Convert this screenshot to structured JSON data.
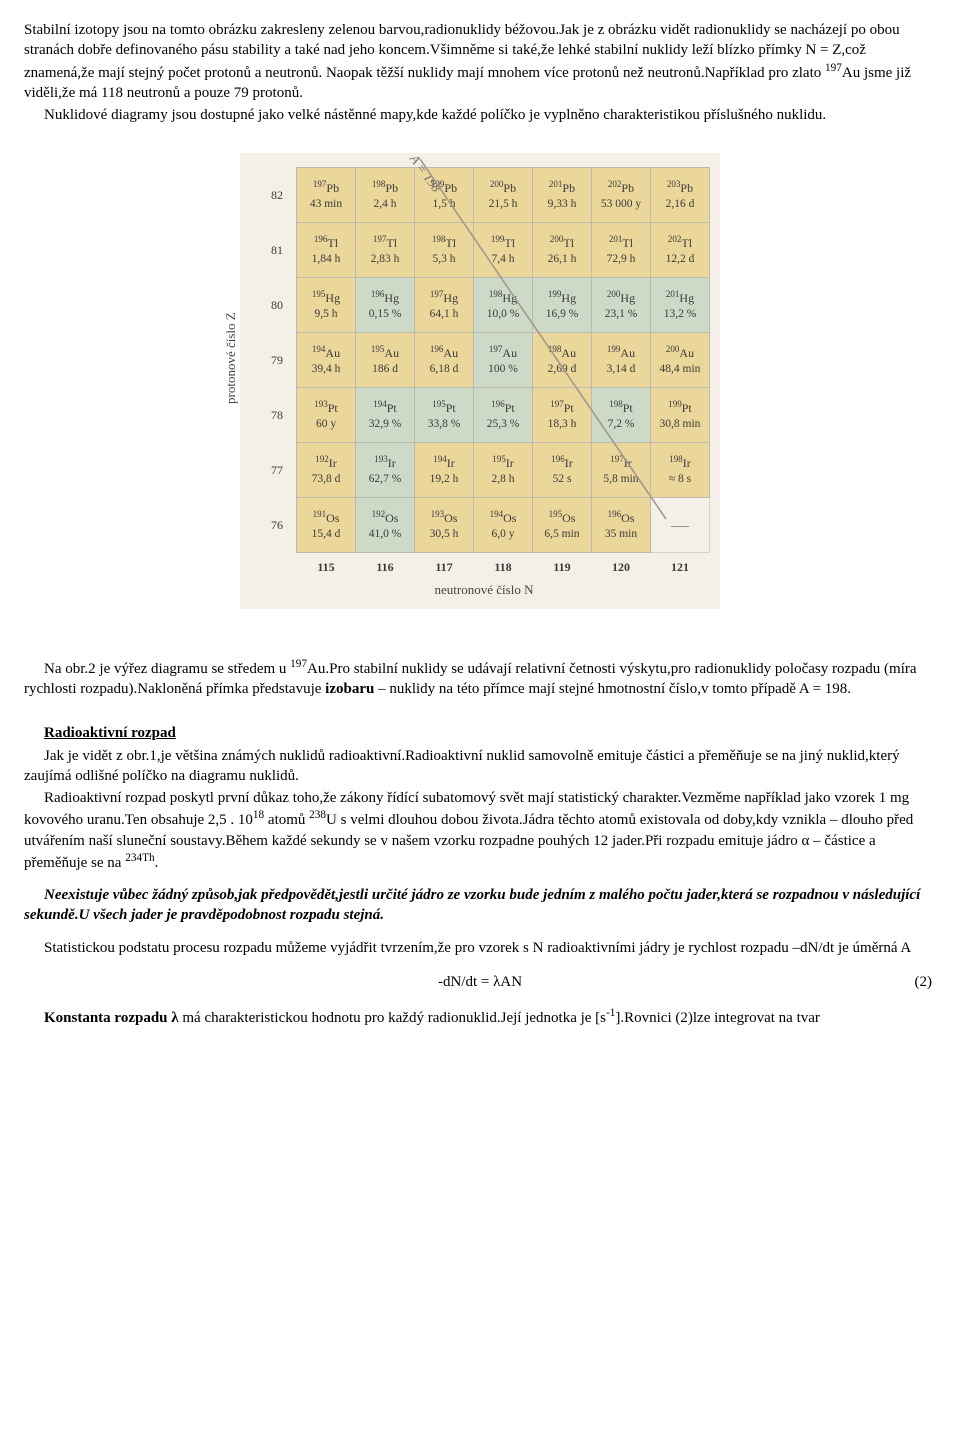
{
  "para1": "Stabilní izotopy jsou na tomto obrázku zakresleny zelenou barvou,radionuklidy béžovou.Jak je z obrázku vidět radionuklidy se nacházejí po obou stranách dobře definovaného pásu stability a také nad jeho koncem.Všimněme si také,že lehké stabilní nuklidy leží blízko přímky N = Z,což znamená,že mají stejný počet protonů a neutronů. Naopak těžší nuklidy mají mnohem více protonů než neutronů.Například pro zlato ",
  "para1_sup": "197",
  "para1b": "Au jsme již viděli,že má 118 neutronů a pouze 79 protonů.",
  "para2": "Nuklidové diagramy jsou dostupné jako velké nástěnné mapy,kde každé políčko je vyplněno charakteristikou příslušného nuklidu.",
  "chart": {
    "ylabel": "protonové číslo Z",
    "xlabel": "neutronové číslo N",
    "isobar_label": "A = 198",
    "row_headers": [
      "82",
      "81",
      "80",
      "79",
      "78",
      "77",
      "76"
    ],
    "col_headers": [
      "115",
      "116",
      "117",
      "118",
      "119",
      "120",
      "121"
    ],
    "stable_bg": "#cddac8",
    "radio_bg": "#ecd79b",
    "grid": [
      [
        {
          "a": "197",
          "el": "Pb",
          "v": "43 min",
          "s": false
        },
        {
          "a": "198",
          "el": "Pb",
          "v": "2,4 h",
          "s": false
        },
        {
          "a": "199",
          "el": "Pb",
          "v": "1,5 h",
          "s": false
        },
        {
          "a": "200",
          "el": "Pb",
          "v": "21,5 h",
          "s": false
        },
        {
          "a": "201",
          "el": "Pb",
          "v": "9,33 h",
          "s": false
        },
        {
          "a": "202",
          "el": "Pb",
          "v": "53 000 y",
          "s": false
        },
        {
          "a": "203",
          "el": "Pb",
          "v": "2,16 d",
          "s": false
        }
      ],
      [
        {
          "a": "196",
          "el": "Tl",
          "v": "1,84 h",
          "s": false
        },
        {
          "a": "197",
          "el": "Tl",
          "v": "2,83 h",
          "s": false
        },
        {
          "a": "198",
          "el": "Tl",
          "v": "5,3 h",
          "s": false
        },
        {
          "a": "199",
          "el": "Tl",
          "v": "7,4 h",
          "s": false
        },
        {
          "a": "200",
          "el": "Tl",
          "v": "26,1 h",
          "s": false
        },
        {
          "a": "201",
          "el": "Tl",
          "v": "72,9 h",
          "s": false
        },
        {
          "a": "202",
          "el": "Tl",
          "v": "12,2 d",
          "s": false
        }
      ],
      [
        {
          "a": "195",
          "el": "Hg",
          "v": "9,5 h",
          "s": false
        },
        {
          "a": "196",
          "el": "Hg",
          "v": "0,15 %",
          "s": true
        },
        {
          "a": "197",
          "el": "Hg",
          "v": "64,1 h",
          "s": false
        },
        {
          "a": "198",
          "el": "Hg",
          "v": "10,0 %",
          "s": true
        },
        {
          "a": "199",
          "el": "Hg",
          "v": "16,9 %",
          "s": true
        },
        {
          "a": "200",
          "el": "Hg",
          "v": "23,1 %",
          "s": true
        },
        {
          "a": "201",
          "el": "Hg",
          "v": "13,2 %",
          "s": true
        }
      ],
      [
        {
          "a": "194",
          "el": "Au",
          "v": "39,4 h",
          "s": false
        },
        {
          "a": "195",
          "el": "Au",
          "v": "186 d",
          "s": false
        },
        {
          "a": "196",
          "el": "Au",
          "v": "6,18 d",
          "s": false
        },
        {
          "a": "197",
          "el": "Au",
          "v": "100 %",
          "s": true
        },
        {
          "a": "198",
          "el": "Au",
          "v": "2,69 d",
          "s": false
        },
        {
          "a": "199",
          "el": "Au",
          "v": "3,14 d",
          "s": false
        },
        {
          "a": "200",
          "el": "Au",
          "v": "48,4 min",
          "s": false
        }
      ],
      [
        {
          "a": "193",
          "el": "Pt",
          "v": "60 y",
          "s": false
        },
        {
          "a": "194",
          "el": "Pt",
          "v": "32,9 %",
          "s": true
        },
        {
          "a": "195",
          "el": "Pt",
          "v": "33,8 %",
          "s": true
        },
        {
          "a": "196",
          "el": "Pt",
          "v": "25,3 %",
          "s": true
        },
        {
          "a": "197",
          "el": "Pt",
          "v": "18,3 h",
          "s": false
        },
        {
          "a": "198",
          "el": "Pt",
          "v": "7,2 %",
          "s": true
        },
        {
          "a": "199",
          "el": "Pt",
          "v": "30,8 min",
          "s": false
        }
      ],
      [
        {
          "a": "192",
          "el": "Ir",
          "v": "73,8 d",
          "s": false
        },
        {
          "a": "193",
          "el": "Ir",
          "v": "62,7 %",
          "s": true
        },
        {
          "a": "194",
          "el": "Ir",
          "v": "19,2 h",
          "s": false
        },
        {
          "a": "195",
          "el": "Ir",
          "v": "2,8 h",
          "s": false
        },
        {
          "a": "196",
          "el": "Ir",
          "v": "52 s",
          "s": false
        },
        {
          "a": "197",
          "el": "Ir",
          "v": "5,8 min",
          "s": false
        },
        {
          "a": "198",
          "el": "Ir",
          "v": "≈ 8 s",
          "s": false
        }
      ],
      [
        {
          "a": "191",
          "el": "Os",
          "v": "15,4 d",
          "s": false
        },
        {
          "a": "192",
          "el": "Os",
          "v": "41,0 %",
          "s": true
        },
        {
          "a": "193",
          "el": "Os",
          "v": "30,5 h",
          "s": false
        },
        {
          "a": "194",
          "el": "Os",
          "v": "6,0 y",
          "s": false
        },
        {
          "a": "195",
          "el": "Os",
          "v": "6,5 min",
          "s": false
        },
        {
          "a": "196",
          "el": "Os",
          "v": "35 min",
          "s": false
        },
        {
          "empty": true
        }
      ]
    ]
  },
  "para3a": "Na obr.2 je výřez diagramu se středem u ",
  "para3_sup": "197",
  "para3b": "Au.Pro stabilní nuklidy se udávají relativní četnosti výskytu,pro radionuklidy  poločasy rozpadu (míra rychlosti rozpadu).Nakloněná přímka představuje ",
  "para3_bold": "izobaru",
  "para3c": " – nuklidy na této přímce mají stejné hmotnostní číslo,v tomto případě A = 198.",
  "h1": "Radioaktivní rozpad",
  "para4": "Jak je vidět z obr.1,je většina známých nuklidů radioaktivní.Radioaktivní nuklid samovolně emituje částici a přeměňuje se na jiný nuklid,který zaujímá odlišné políčko na diagramu nuklidů.",
  "para5a": "Radioaktivní rozpad poskytl první důkaz toho,že zákony řídící subatomový svět mají statistický charakter.Vezměme například jako vzorek 1 mg kovového uranu.Ten obsahuje 2,5 . 10",
  "para5_sup1": "18",
  "para5b": " atomů ",
  "para5_sup2": "238",
  "para5c": "U s velmi dlouhou dobou života.Jádra těchto atomů existovala od doby,kdy vznikla – dlouho před utvářením naší sluneční soustavy.Během každé sekundy se v našem vzorku rozpadne pouhých 12 jader.Při rozpadu emituje jádro α – částice a přeměňuje se na ",
  "para5_sup3": "234Th",
  "para5d": ".",
  "para6": "Neexistuje vůbec žádný způsob,jak předpovědět,jestli určité jádro ze vzorku bude jedním z malého počtu jader,která se rozpadnou v následující sekundě.U všech jader je pravděpodobnost rozpadu stejná.",
  "para7": "Statistickou podstatu procesu rozpadu můžeme vyjádřit tvrzením,že pro vzorek s N radioaktivními jádry je rychlost rozpadu –dN/dt je úměrná A",
  "eq": "-dN/dt = λAN",
  "eqnum": "(2)",
  "para8a": "Konstanta rozpadu λ",
  "para8b": " má charakteristickou hodnotu pro každý radionuklid.Její jednotka je [s",
  "para8_sup": "-1",
  "para8c": "].Rovnici (2)lze integrovat na tvar"
}
